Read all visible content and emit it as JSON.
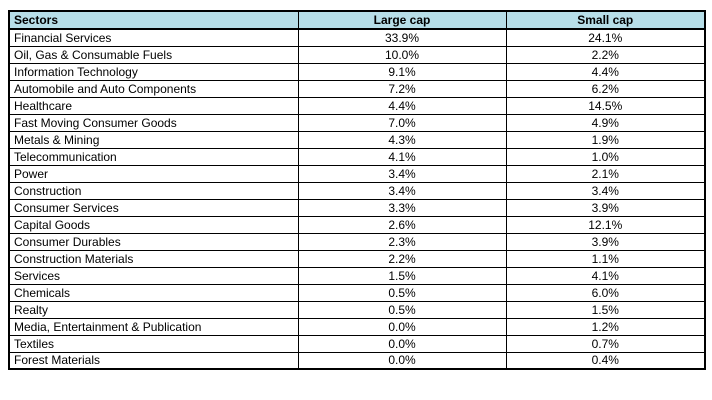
{
  "colors": {
    "header_bg": "#b7dee8",
    "border": "#000000",
    "row_bg": "#ffffff"
  },
  "table": {
    "columns": [
      {
        "key": "sector",
        "label": "Sectors"
      },
      {
        "key": "large_cap",
        "label": "Large cap"
      },
      {
        "key": "small_cap",
        "label": "Small cap"
      }
    ],
    "rows": [
      {
        "sector": "Financial Services",
        "large_cap": "33.9%",
        "small_cap": "24.1%"
      },
      {
        "sector": "Oil, Gas & Consumable Fuels",
        "large_cap": "10.0%",
        "small_cap": "2.2%"
      },
      {
        "sector": "Information Technology",
        "large_cap": "9.1%",
        "small_cap": "4.4%"
      },
      {
        "sector": "Automobile and Auto Components",
        "large_cap": "7.2%",
        "small_cap": "6.2%"
      },
      {
        "sector": "Healthcare",
        "large_cap": "4.4%",
        "small_cap": "14.5%"
      },
      {
        "sector": "Fast Moving Consumer Goods",
        "large_cap": "7.0%",
        "small_cap": "4.9%"
      },
      {
        "sector": "Metals & Mining",
        "large_cap": "4.3%",
        "small_cap": "1.9%"
      },
      {
        "sector": "Telecommunication",
        "large_cap": "4.1%",
        "small_cap": "1.0%"
      },
      {
        "sector": "Power",
        "large_cap": "3.4%",
        "small_cap": "2.1%"
      },
      {
        "sector": "Construction",
        "large_cap": "3.4%",
        "small_cap": "3.4%"
      },
      {
        "sector": "Consumer Services",
        "large_cap": "3.3%",
        "small_cap": "3.9%"
      },
      {
        "sector": "Capital Goods",
        "large_cap": "2.6%",
        "small_cap": "12.1%"
      },
      {
        "sector": "Consumer Durables",
        "large_cap": "2.3%",
        "small_cap": "3.9%"
      },
      {
        "sector": "Construction Materials",
        "large_cap": "2.2%",
        "small_cap": "1.1%"
      },
      {
        "sector": "Services",
        "large_cap": "1.5%",
        "small_cap": "4.1%"
      },
      {
        "sector": "Chemicals",
        "large_cap": "0.5%",
        "small_cap": "6.0%"
      },
      {
        "sector": "Realty",
        "large_cap": "0.5%",
        "small_cap": "1.5%"
      },
      {
        "sector": "Media, Entertainment & Publication",
        "large_cap": "0.0%",
        "small_cap": "1.2%"
      },
      {
        "sector": "Textiles",
        "large_cap": "0.0%",
        "small_cap": "0.7%"
      },
      {
        "sector": "Forest Materials",
        "large_cap": "0.0%",
        "small_cap": "0.4%"
      }
    ]
  },
  "chart_data": {
    "type": "table",
    "title": "",
    "categories": [
      "Financial Services",
      "Oil, Gas & Consumable Fuels",
      "Information Technology",
      "Automobile and Auto Components",
      "Healthcare",
      "Fast Moving Consumer Goods",
      "Metals & Mining",
      "Telecommunication",
      "Power",
      "Construction",
      "Consumer Services",
      "Capital Goods",
      "Consumer Durables",
      "Construction Materials",
      "Services",
      "Chemicals",
      "Realty",
      "Media, Entertainment & Publication",
      "Textiles",
      "Forest Materials"
    ],
    "series": [
      {
        "name": "Large cap",
        "values": [
          33.9,
          10.0,
          9.1,
          7.2,
          4.4,
          7.0,
          4.3,
          4.1,
          3.4,
          3.4,
          3.3,
          2.6,
          2.3,
          2.2,
          1.5,
          0.5,
          0.5,
          0.0,
          0.0,
          0.0
        ],
        "unit": "%"
      },
      {
        "name": "Small cap",
        "values": [
          24.1,
          2.2,
          4.4,
          6.2,
          14.5,
          4.9,
          1.9,
          1.0,
          2.1,
          3.4,
          3.9,
          12.1,
          3.9,
          1.1,
          4.1,
          6.0,
          1.5,
          1.2,
          0.7,
          0.4
        ],
        "unit": "%"
      }
    ]
  }
}
